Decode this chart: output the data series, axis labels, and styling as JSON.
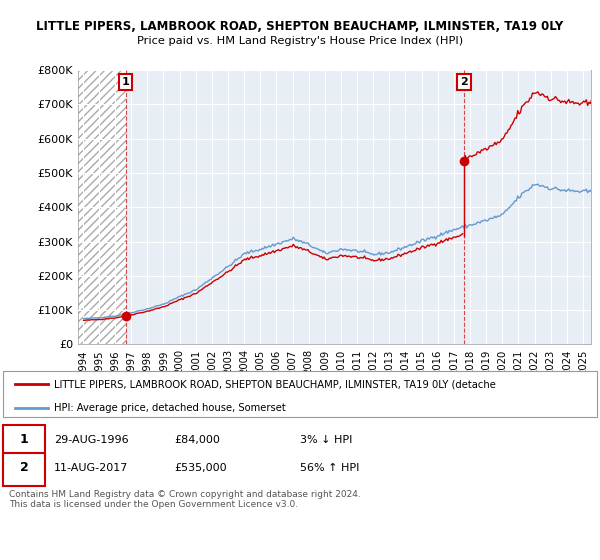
{
  "title": "LITTLE PIPERS, LAMBROOK ROAD, SHEPTON BEAUCHAMP, ILMINSTER, TA19 0LY",
  "subtitle": "Price paid vs. HM Land Registry's House Price Index (HPI)",
  "ylim": [
    0,
    800000
  ],
  "yticks": [
    0,
    100000,
    200000,
    300000,
    400000,
    500000,
    600000,
    700000,
    800000
  ],
  "ytick_labels": [
    "£0",
    "£100K",
    "£200K",
    "£300K",
    "£400K",
    "£500K",
    "£600K",
    "£700K",
    "£800K"
  ],
  "hpi_color": "#6699cc",
  "price_color": "#cc0000",
  "marker_color": "#cc0000",
  "sale1_x": 1996.65,
  "sale1_y": 84000,
  "sale2_x": 2017.62,
  "sale2_y": 535000,
  "sale1_date": "29-AUG-1996",
  "sale1_price": "£84,000",
  "sale1_pct": "3% ↓ HPI",
  "sale2_date": "11-AUG-2017",
  "sale2_price": "£535,000",
  "sale2_pct": "56% ↑ HPI",
  "legend_line1": "LITTLE PIPERS, LAMBROOK ROAD, SHEPTON BEAUCHAMP, ILMINSTER, TA19 0LY (detache",
  "legend_line2": "HPI: Average price, detached house, Somerset",
  "footnote": "Contains HM Land Registry data © Crown copyright and database right 2024.\nThis data is licensed under the Open Government Licence v3.0.",
  "xlim_start": 1993.7,
  "xlim_end": 2025.5,
  "xticks": [
    1994,
    1995,
    1996,
    1997,
    1998,
    1999,
    2000,
    2001,
    2002,
    2003,
    2004,
    2005,
    2006,
    2007,
    2008,
    2009,
    2010,
    2011,
    2012,
    2013,
    2014,
    2015,
    2016,
    2017,
    2018,
    2019,
    2020,
    2021,
    2022,
    2023,
    2024,
    2025
  ]
}
